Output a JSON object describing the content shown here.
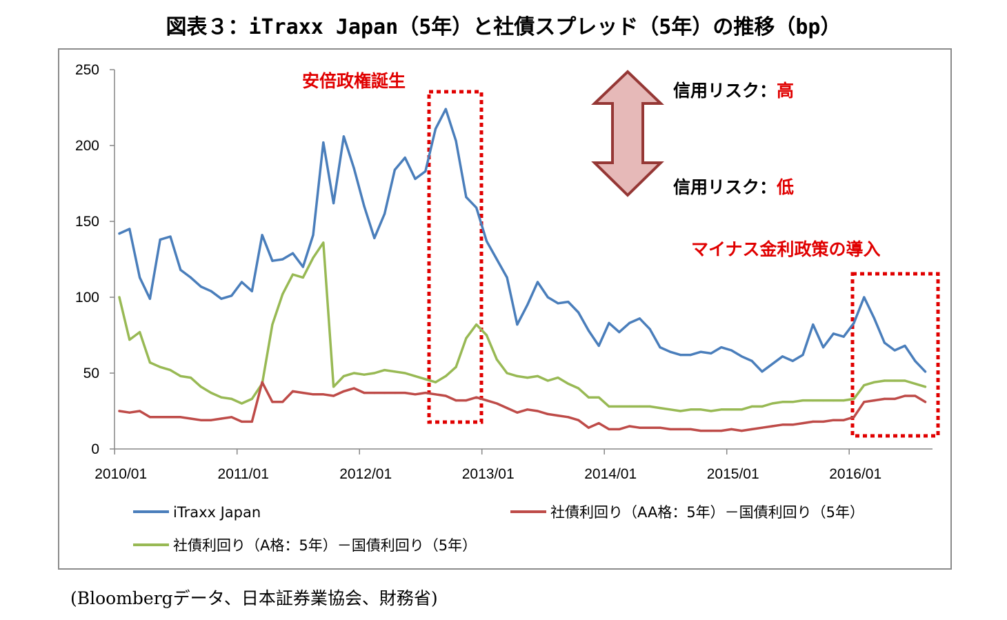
{
  "title": "図表３：iTraxx Japan（5年）と社債スプレッド（5年）の推移（bp）",
  "source": "(Bloombergデータ、日本証券業協会、財務省)",
  "annotations": {
    "abe": "安倍政権誕生",
    "negative_rate": "マイナス金利政策の導入",
    "risk_high_label": "信用リスク：",
    "risk_high_value": "高",
    "risk_low_label": "信用リスク：",
    "risk_low_value": "低",
    "arrow_icon": "double-vertical-arrow-icon"
  },
  "colors": {
    "itraxx": "#4a7ebb",
    "aa": "#be4b48",
    "a": "#98b954",
    "highlight": "#e00000",
    "arrow_fill": "#e6b9b8",
    "arrow_stroke": "#953735"
  },
  "chart_data": {
    "type": "line",
    "x_tick_labels": [
      "2010/01",
      "2011/01",
      "2012/01",
      "2013/01",
      "2014/01",
      "2015/01",
      "2016/01"
    ],
    "ylim": [
      0,
      250
    ],
    "y_ticks": [
      0,
      50,
      100,
      150,
      200,
      250
    ],
    "grid": false,
    "legend_position": "bottom",
    "x_start": "2010/01",
    "x_interval": "month",
    "highlight_ranges": [
      {
        "start": "2012/07",
        "end": "2012/12"
      },
      {
        "start": "2016/01",
        "end": "2016/08"
      }
    ],
    "series": [
      {
        "name": "iTraxx Japan",
        "values": [
          142,
          145,
          113,
          99,
          138,
          140,
          118,
          113,
          107,
          104,
          99,
          101,
          110,
          104,
          141,
          124,
          125,
          129,
          120,
          141,
          202,
          162,
          206,
          185,
          160,
          139,
          155,
          184,
          192,
          178,
          183,
          211,
          224,
          203,
          166,
          159,
          137,
          125,
          113,
          82,
          95,
          110,
          100,
          96,
          97,
          90,
          78,
          68,
          83,
          77,
          83,
          86,
          79,
          67,
          64,
          62,
          62,
          64,
          63,
          67,
          65,
          61,
          58,
          51,
          56,
          61,
          58,
          62,
          82,
          67,
          76,
          74,
          83,
          100,
          86,
          70,
          65,
          68,
          58,
          51
        ]
      },
      {
        "name": "社債利回り（AA格：5年）－国債利回り（5年）",
        "values": [
          25,
          24,
          25,
          21,
          21,
          21,
          21,
          20,
          19,
          19,
          20,
          21,
          18,
          18,
          44,
          31,
          31,
          38,
          37,
          36,
          36,
          35,
          38,
          40,
          37,
          37,
          37,
          37,
          37,
          36,
          37,
          36,
          35,
          32,
          32,
          34,
          32,
          30,
          27,
          24,
          26,
          25,
          23,
          22,
          21,
          19,
          14,
          17,
          13,
          13,
          15,
          14,
          14,
          14,
          13,
          13,
          13,
          12,
          12,
          12,
          13,
          12,
          13,
          14,
          15,
          16,
          16,
          17,
          18,
          18,
          19,
          19,
          21,
          31,
          32,
          33,
          33,
          35,
          35,
          31
        ]
      },
      {
        "name": "社債利回り（A格：5年）－国債利回り（5年）",
        "values": [
          100,
          72,
          77,
          57,
          54,
          52,
          48,
          47,
          41,
          37,
          34,
          33,
          30,
          33,
          43,
          82,
          102,
          115,
          113,
          126,
          136,
          41,
          48,
          50,
          49,
          50,
          52,
          51,
          50,
          48,
          46,
          44,
          48,
          54,
          73,
          82,
          75,
          59,
          50,
          48,
          47,
          48,
          45,
          47,
          43,
          40,
          34,
          34,
          28,
          28,
          28,
          28,
          28,
          27,
          26,
          25,
          26,
          26,
          25,
          26,
          26,
          26,
          28,
          28,
          30,
          31,
          31,
          32,
          32,
          32,
          32,
          32,
          33,
          42,
          44,
          45,
          45,
          45,
          43,
          41
        ]
      }
    ]
  }
}
